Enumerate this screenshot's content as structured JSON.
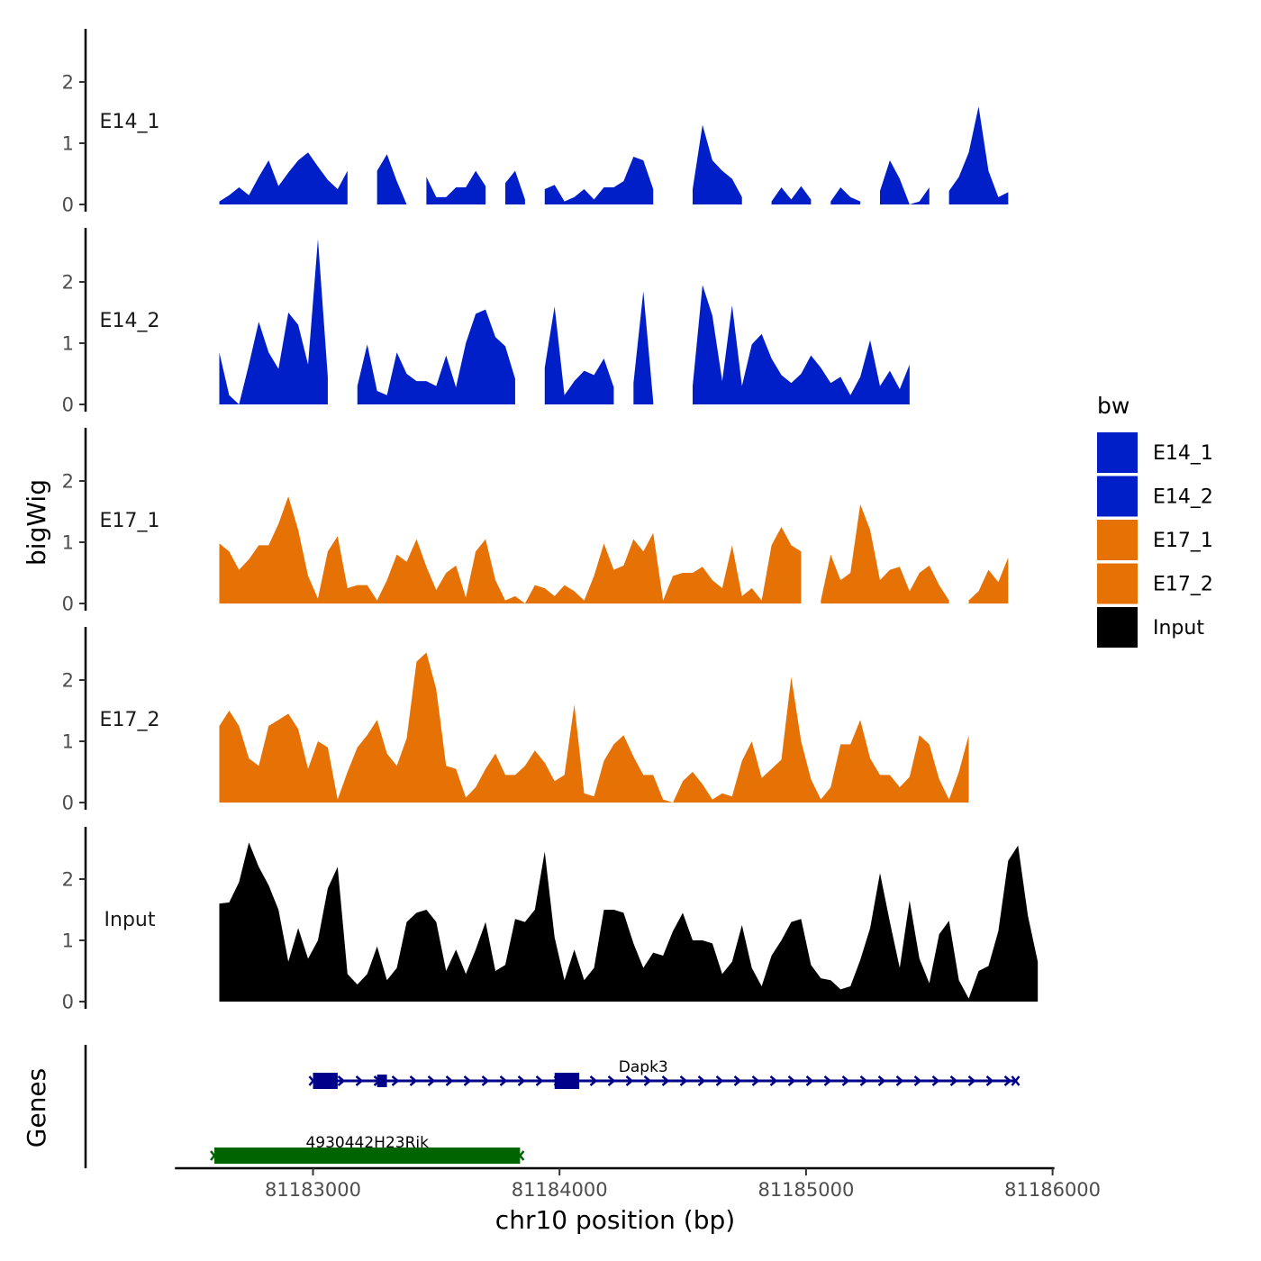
{
  "chart_data": {
    "type": "area",
    "xlabel": "chr10 position (bp)",
    "ylabel": "bigWig",
    "genes_label": "Genes",
    "xlim": [
      81182440,
      81186000
    ],
    "ylim": [
      0,
      2.9
    ],
    "x_ticks": [
      81183000,
      81184000,
      81185000,
      81186000
    ],
    "x_tick_labels": [
      "81183000",
      "81184000",
      "81185000",
      "81186000"
    ],
    "y_ticks": [
      0,
      1,
      2
    ],
    "y_tick_labels": [
      "0",
      "1",
      "2"
    ],
    "legend": {
      "title": "bw",
      "entries": [
        {
          "name": "E14_1",
          "color": "#001FC8"
        },
        {
          "name": "E14_2",
          "color": "#001FC8"
        },
        {
          "name": "E17_1",
          "color": "#E67206"
        },
        {
          "name": "E17_2",
          "color": "#E67206"
        },
        {
          "name": "Input",
          "color": "#000000"
        }
      ]
    },
    "x_grid_start": 81182620,
    "x_grid_step": 40,
    "series": [
      {
        "name": "E14_1",
        "color": "#001FC8",
        "values": [
          0.05,
          0.15,
          0.28,
          0.15,
          0.45,
          0.72,
          0.3,
          0.52,
          0.72,
          0.85,
          0.62,
          0.4,
          0.25,
          0.55,
          null,
          null,
          0.55,
          0.82,
          0.38,
          0,
          null,
          0.45,
          0.12,
          0.12,
          0.28,
          0.28,
          0.55,
          0.3,
          null,
          0.35,
          0.55,
          0.08,
          null,
          0.25,
          0.32,
          0.05,
          0.12,
          0.25,
          0.08,
          0.28,
          0.28,
          0.38,
          0.78,
          0.72,
          0.25,
          null,
          null,
          null,
          0.25,
          1.3,
          0.72,
          0.55,
          0.42,
          0.12,
          null,
          null,
          0.05,
          0.28,
          0.08,
          0.3,
          0.08,
          null,
          0.05,
          0.28,
          0.12,
          0.05,
          null,
          0.22,
          0.72,
          0.42,
          0,
          0.05,
          0.28,
          null,
          0.22,
          0.45,
          0.85,
          1.6,
          0.55,
          0.12,
          0.2
        ]
      },
      {
        "name": "E14_2",
        "color": "#001FC8",
        "values": [
          0.85,
          0.15,
          0,
          0.65,
          1.35,
          0.85,
          0.58,
          1.5,
          1.3,
          0.65,
          2.7,
          0.45,
          null,
          null,
          0.3,
          0.98,
          0.22,
          0.15,
          0.85,
          0.5,
          0.38,
          0.38,
          0.3,
          0.8,
          0.28,
          1.0,
          1.48,
          1.55,
          1.1,
          0.95,
          0.42,
          null,
          null,
          0.6,
          1.6,
          0.15,
          0.38,
          0.55,
          0.48,
          0.75,
          0.28,
          null,
          0.35,
          1.85,
          0.05,
          null,
          null,
          null,
          0.3,
          1.95,
          1.45,
          0.38,
          1.62,
          0.3,
          0.98,
          1.15,
          0.75,
          0.48,
          0.35,
          0.5,
          0.8,
          0.6,
          0.35,
          0.45,
          0.15,
          0.45,
          1.05,
          0.3,
          0.55,
          0.25,
          0.65
        ]
      },
      {
        "name": "E17_1",
        "color": "#E67206",
        "values": [
          0.98,
          0.85,
          0.55,
          0.72,
          0.95,
          0.95,
          1.3,
          1.75,
          1.2,
          0.45,
          0.08,
          0.85,
          1.1,
          0.25,
          0.3,
          0.3,
          0.05,
          0.38,
          0.8,
          0.68,
          1.05,
          0.6,
          0.22,
          0.5,
          0.62,
          0.1,
          0.85,
          1.05,
          0.38,
          0.05,
          0.12,
          0,
          0.3,
          0.25,
          0.12,
          0.3,
          0.2,
          0.05,
          0.45,
          0.98,
          0.55,
          0.62,
          1.05,
          0.85,
          1.15,
          0.05,
          0.45,
          0.5,
          0.5,
          0.6,
          0.38,
          0.25,
          0.95,
          0.12,
          0.25,
          0.05,
          0.95,
          1.25,
          0.95,
          0.85,
          null,
          0.05,
          0.8,
          0.38,
          0.5,
          1.62,
          1.2,
          0.38,
          0.55,
          0.6,
          0.2,
          0.5,
          0.62,
          0.3,
          0.05,
          null,
          0.05,
          0.2,
          0.55,
          0.35,
          0.75
        ]
      },
      {
        "name": "E17_2",
        "color": "#E67206",
        "values": [
          1.25,
          1.5,
          1.25,
          0.72,
          0.6,
          1.25,
          1.35,
          1.45,
          1.2,
          0.55,
          1.0,
          0.9,
          0.05,
          0.5,
          0.9,
          1.1,
          1.35,
          0.8,
          0.6,
          1.05,
          2.3,
          2.45,
          1.85,
          0.6,
          0.55,
          0.08,
          0.25,
          0.55,
          0.8,
          0.45,
          0.45,
          0.6,
          0.85,
          0.65,
          0.35,
          0.45,
          1.6,
          0.15,
          0.1,
          0.68,
          0.95,
          1.1,
          0.75,
          0.45,
          0.45,
          0.05,
          0,
          0.35,
          0.5,
          0.3,
          0.05,
          0.15,
          0.1,
          0.68,
          1.0,
          0.4,
          0.55,
          0.7,
          2.05,
          1.0,
          0.38,
          0.05,
          0.25,
          0.95,
          0.95,
          1.35,
          0.72,
          0.45,
          0.45,
          0.25,
          0.42,
          1.1,
          0.95,
          0.38,
          0.05,
          0.5,
          1.1
        ]
      },
      {
        "name": "Input",
        "color": "#000000",
        "values": [
          1.6,
          1.62,
          1.95,
          2.6,
          2.2,
          1.9,
          1.5,
          0.65,
          1.2,
          0.7,
          1.0,
          1.85,
          2.2,
          0.45,
          0.28,
          0.45,
          0.9,
          0.35,
          0.55,
          1.3,
          1.45,
          1.5,
          1.3,
          0.5,
          0.85,
          0.45,
          0.85,
          1.3,
          0.5,
          0.6,
          1.35,
          1.3,
          1.5,
          2.45,
          1.05,
          0.35,
          0.85,
          0.35,
          0.55,
          1.5,
          1.5,
          1.45,
          0.95,
          0.55,
          0.8,
          0.75,
          1.15,
          1.45,
          1.0,
          1.0,
          0.95,
          0.45,
          0.65,
          1.25,
          0.55,
          0.25,
          0.75,
          1.0,
          1.3,
          1.35,
          0.6,
          0.38,
          0.35,
          0.2,
          0.25,
          0.68,
          1.2,
          2.1,
          1.3,
          0.55,
          1.65,
          0.7,
          0.3,
          1.1,
          1.32,
          0.35,
          0.05,
          0.5,
          0.58,
          1.15,
          2.3,
          2.55,
          1.4,
          0.65
        ]
      }
    ],
    "genes": [
      {
        "name": "Dapk3",
        "color": "#00008B",
        "strand": "+",
        "start": 81183000,
        "end": 81185850,
        "exons": [
          [
            81183000,
            81183100
          ],
          [
            81183260,
            81183300
          ],
          [
            81183980,
            81184080
          ]
        ],
        "label_position": 81184340
      },
      {
        "name": "4930442H23Rik",
        "color": "#006400",
        "strand": "-",
        "start": 81182600,
        "end": 81183840,
        "exons": [
          [
            81182600,
            81183840
          ]
        ],
        "label_position": 81183220
      }
    ]
  }
}
